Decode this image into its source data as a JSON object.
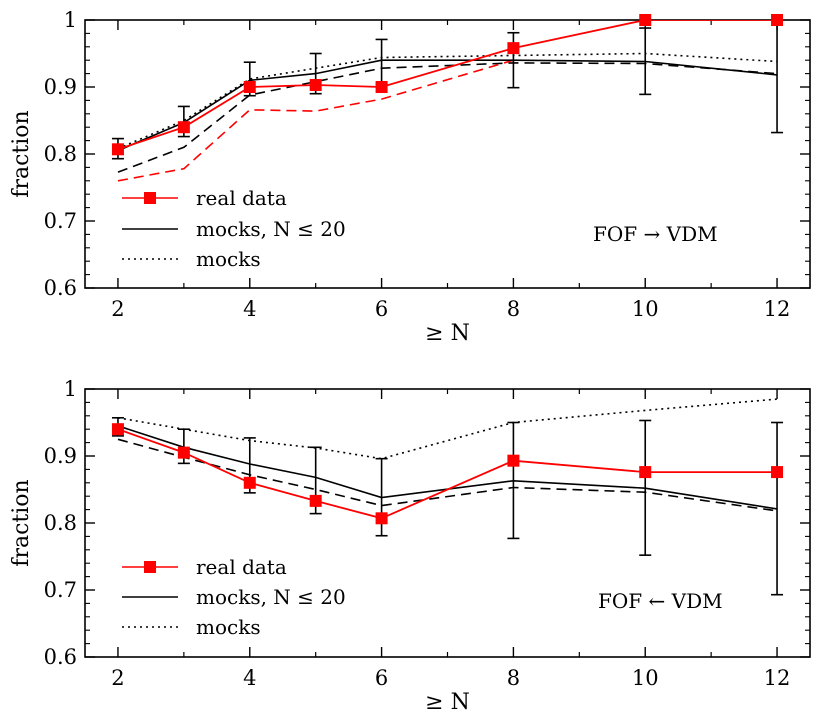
{
  "chart_data": [
    {
      "type": "line",
      "xlabel": "≥ N",
      "ylabel": "fraction",
      "xlim": [
        1.5,
        12.5
      ],
      "ylim": [
        0.6,
        1.0
      ],
      "x_ticks": [
        2,
        4,
        6,
        8,
        10,
        12
      ],
      "y_ticks": [
        0.6,
        0.7,
        0.8,
        0.9,
        1.0
      ],
      "x_tick_labels": [
        "2",
        "4",
        "6",
        "8",
        "10",
        "12"
      ],
      "y_tick_labels": [
        "0.6",
        "0.7",
        "0.8",
        "0.9",
        "1"
      ],
      "annotation": "FOF → VDM",
      "legend": {
        "position": "lower-left",
        "entries": [
          {
            "label": "real data",
            "style": "red-line-square"
          },
          {
            "label": "mocks, N ≤ 20",
            "style": "black-solid"
          },
          {
            "label": "mocks",
            "style": "black-dotted"
          }
        ]
      },
      "series": [
        {
          "name": "real data",
          "color": "#ff0000",
          "style": "solid",
          "marker": "square",
          "x": [
            2,
            3,
            4,
            5,
            6,
            8,
            10,
            12
          ],
          "y": [
            0.807,
            0.84,
            0.9,
            0.903,
            0.9,
            0.958,
            1.0,
            1.0
          ]
        },
        {
          "name": "mocks, N ≤ 20",
          "color": "#000000",
          "style": "solid",
          "marker": "none",
          "x": [
            2,
            3,
            4,
            5,
            6,
            8,
            10,
            12
          ],
          "y": [
            0.805,
            0.847,
            0.91,
            0.92,
            0.94,
            0.94,
            0.938,
            0.918
          ],
          "errorbars": [
            {
              "x": 2,
              "low": 0.793,
              "high": 0.823
            },
            {
              "x": 3,
              "low": 0.826,
              "high": 0.871
            },
            {
              "x": 4,
              "low": 0.887,
              "high": 0.937
            },
            {
              "x": 5,
              "low": 0.89,
              "high": 0.95
            },
            {
              "x": 6,
              "low": 0.905,
              "high": 0.971
            },
            {
              "x": 8,
              "low": 0.899,
              "high": 0.981
            },
            {
              "x": 10,
              "low": 0.889,
              "high": 0.988
            },
            {
              "x": 12,
              "low": 0.832,
              "high": 1.0
            }
          ]
        },
        {
          "name": "mocks",
          "color": "#000000",
          "style": "dotted",
          "marker": "none",
          "x": [
            2,
            3,
            4,
            5,
            6,
            8,
            10,
            12
          ],
          "y": [
            0.808,
            0.85,
            0.912,
            0.928,
            0.944,
            0.947,
            0.95,
            0.938
          ]
        },
        {
          "name": "",
          "color": "#000000",
          "style": "dashed",
          "marker": "none",
          "x": [
            2,
            3,
            4,
            5,
            6,
            8,
            10,
            12
          ],
          "y": [
            0.773,
            0.81,
            0.888,
            0.908,
            0.928,
            0.936,
            0.935,
            0.92
          ]
        },
        {
          "name": "",
          "color": "#ff0000",
          "style": "dashed",
          "marker": "none",
          "x": [
            2,
            3,
            4,
            5,
            6,
            8
          ],
          "y": [
            0.76,
            0.778,
            0.866,
            0.864,
            0.882,
            0.94
          ]
        }
      ]
    },
    {
      "type": "line",
      "xlabel": "≥ N",
      "ylabel": "fraction",
      "xlim": [
        1.5,
        12.5
      ],
      "ylim": [
        0.6,
        1.0
      ],
      "x_ticks": [
        2,
        4,
        6,
        8,
        10,
        12
      ],
      "y_ticks": [
        0.6,
        0.7,
        0.8,
        0.9,
        1.0
      ],
      "x_tick_labels": [
        "2",
        "4",
        "6",
        "8",
        "10",
        "12"
      ],
      "y_tick_labels": [
        "0.6",
        "0.7",
        "0.8",
        "0.9",
        "1"
      ],
      "annotation": "FOF ← VDM",
      "legend": {
        "position": "lower-left",
        "entries": [
          {
            "label": "real data",
            "style": "red-line-square"
          },
          {
            "label": "mocks, N ≤ 20",
            "style": "black-solid"
          },
          {
            "label": "mocks",
            "style": "black-dotted"
          }
        ]
      },
      "series": [
        {
          "name": "real data",
          "color": "#ff0000",
          "style": "solid",
          "marker": "square",
          "x": [
            2,
            3,
            4,
            5,
            6,
            8,
            10,
            12
          ],
          "y": [
            0.94,
            0.905,
            0.86,
            0.833,
            0.807,
            0.893,
            0.876,
            0.876
          ]
        },
        {
          "name": "mocks, N ≤ 20",
          "color": "#000000",
          "style": "solid",
          "marker": "none",
          "x": [
            2,
            3,
            4,
            5,
            6,
            8,
            10,
            12
          ],
          "y": [
            0.945,
            0.913,
            0.888,
            0.868,
            0.838,
            0.863,
            0.852,
            0.821
          ],
          "errorbars": [
            {
              "x": 2,
              "low": 0.93,
              "high": 0.957
            },
            {
              "x": 3,
              "low": 0.889,
              "high": 0.94
            },
            {
              "x": 4,
              "low": 0.845,
              "high": 0.927
            },
            {
              "x": 5,
              "low": 0.814,
              "high": 0.913
            },
            {
              "x": 6,
              "low": 0.781,
              "high": 0.896
            },
            {
              "x": 8,
              "low": 0.777,
              "high": 0.95
            },
            {
              "x": 10,
              "low": 0.752,
              "high": 0.953
            },
            {
              "x": 12,
              "low": 0.693,
              "high": 0.95
            }
          ]
        },
        {
          "name": "mocks",
          "color": "#000000",
          "style": "dotted",
          "marker": "none",
          "x": [
            2,
            3,
            4,
            5,
            6,
            8,
            10,
            12
          ],
          "y": [
            0.957,
            0.94,
            0.923,
            0.912,
            0.896,
            0.95,
            0.968,
            0.985
          ]
        },
        {
          "name": "",
          "color": "#000000",
          "style": "dashed",
          "marker": "none",
          "x": [
            2,
            3,
            4,
            5,
            6,
            8,
            10,
            12
          ],
          "y": [
            0.925,
            0.898,
            0.872,
            0.85,
            0.826,
            0.853,
            0.846,
            0.818
          ]
        }
      ]
    }
  ]
}
